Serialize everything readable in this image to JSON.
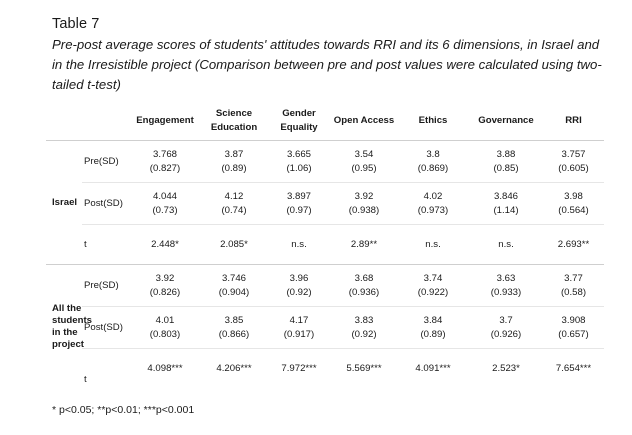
{
  "document": {
    "table_label": "Table 7",
    "caption": "Pre-post average scores of students' attitudes towards RRI and its 6 dimensions, in Israel and in the Irresistible project (Comparison between pre and post values were calculated using two-tailed t-test)",
    "footnote": "* p<0.05; **p<0.01; ***p<0.001"
  },
  "table": {
    "headers": [
      "Engagement",
      "Science Education",
      "Gender Equality",
      "Open Access",
      "Ethics",
      "Governance",
      "RRI"
    ],
    "groups": [
      {
        "label": "Israel",
        "rows": [
          {
            "label": "Pre(SD)",
            "cells": [
              {
                "mean": "3.768",
                "sd": "(0.827)"
              },
              {
                "mean": "3.87",
                "sd": "(0.89)"
              },
              {
                "mean": "3.665",
                "sd": "(1.06)"
              },
              {
                "mean": "3.54",
                "sd": "(0.95)"
              },
              {
                "mean": "3.8",
                "sd": "(0.869)"
              },
              {
                "mean": "3.88",
                "sd": "(0.85)"
              },
              {
                "mean": "3.757",
                "sd": "(0.605)"
              }
            ]
          },
          {
            "label": "Post(SD)",
            "cells": [
              {
                "mean": "4.044",
                "sd": "(0.73)"
              },
              {
                "mean": "4.12",
                "sd": "(0.74)"
              },
              {
                "mean": "3.897",
                "sd": "(0.97)"
              },
              {
                "mean": "3.92",
                "sd": "(0.938)"
              },
              {
                "mean": "4.02",
                "sd": "(0.973)"
              },
              {
                "mean": "3.846",
                "sd": "(1.14)"
              },
              {
                "mean": "3.98",
                "sd": "(0.564)"
              }
            ]
          },
          {
            "label": "t",
            "cells": [
              {
                "mean": "2.448*"
              },
              {
                "mean": "2.085*"
              },
              {
                "mean": "n.s."
              },
              {
                "mean": "2.89**"
              },
              {
                "mean": "n.s."
              },
              {
                "mean": "n.s."
              },
              {
                "mean": "2.693**"
              }
            ]
          }
        ]
      },
      {
        "label": "All the students in the project",
        "rows": [
          {
            "label": "Pre(SD)",
            "cells": [
              {
                "mean": "3.92",
                "sd": "(0.826)"
              },
              {
                "mean": "3.746",
                "sd": "(0.904)"
              },
              {
                "mean": "3.96",
                "sd": "(0.92)"
              },
              {
                "mean": "3.68",
                "sd": "(0.936)"
              },
              {
                "mean": "3.74",
                "sd": "(0.922)"
              },
              {
                "mean": "3.63",
                "sd": "(0.933)"
              },
              {
                "mean": "3.77",
                "sd": "(0.58)"
              }
            ]
          },
          {
            "label": "Post(SD)",
            "cells": [
              {
                "mean": "4.01",
                "sd": "(0.803)"
              },
              {
                "mean": "3.85",
                "sd": "(0.866)"
              },
              {
                "mean": "4.17",
                "sd": "(0.917)"
              },
              {
                "mean": "3.83",
                "sd": "(0.92)"
              },
              {
                "mean": "3.84",
                "sd": "(0.89)"
              },
              {
                "mean": "3.7",
                "sd": "(0.926)"
              },
              {
                "mean": "3.908",
                "sd": "(0.657)"
              }
            ]
          },
          {
            "label": "t",
            "cells": [
              {
                "mean": "4.098***"
              },
              {
                "mean": "4.206***"
              },
              {
                "mean": "7.972***"
              },
              {
                "mean": "5.569***"
              },
              {
                "mean": "4.091***"
              },
              {
                "mean": "2.523*"
              },
              {
                "mean": "7.654***"
              }
            ]
          }
        ]
      }
    ]
  }
}
